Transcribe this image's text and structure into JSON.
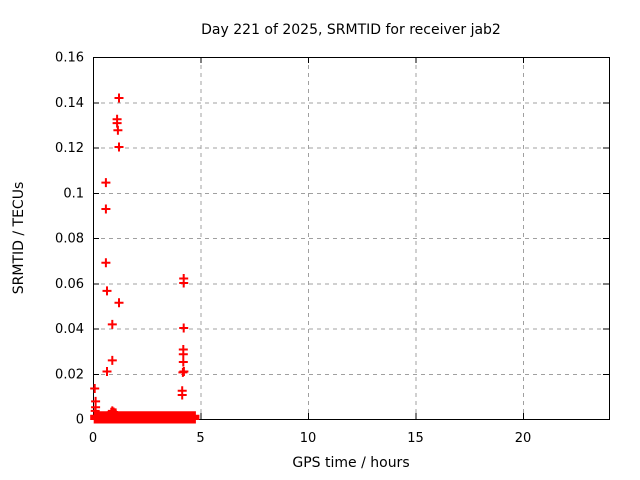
{
  "colors": {
    "marker": "#ff0000",
    "grid": "#a0a0a0",
    "axis": "#000000",
    "background": "#ffffff",
    "text": "#000000"
  },
  "chart_data": {
    "type": "scatter",
    "title": "Day 221 of 2025, SRMTID for receiver jab2",
    "xlabel": "GPS time / hours",
    "ylabel": "SRMTID / TECUs",
    "xlim": [
      0,
      24
    ],
    "ylim": [
      0,
      0.16
    ],
    "xticks": [
      0,
      5,
      10,
      15,
      20
    ],
    "yticks": [
      0,
      0.02,
      0.04,
      0.06,
      0.08,
      0.1,
      0.12,
      0.14,
      0.16
    ],
    "grid": true,
    "legend_position": "none",
    "marker": "plus",
    "series": [
      {
        "name": "SRMTID",
        "points": [
          [
            0.08,
            0.0135
          ],
          [
            0.12,
            0.0078
          ],
          [
            0.12,
            0.0052
          ],
          [
            0.1,
            0.0036
          ],
          [
            0.6,
            0.1045
          ],
          [
            0.6,
            0.0928
          ],
          [
            0.6,
            0.0691
          ],
          [
            0.65,
            0.0566
          ],
          [
            0.65,
            0.021
          ],
          [
            0.9,
            0.0418
          ],
          [
            0.9,
            0.0259
          ],
          [
            1.12,
            0.1325
          ],
          [
            1.12,
            0.1308
          ],
          [
            1.16,
            0.1276
          ],
          [
            1.21,
            0.1419
          ],
          [
            1.21,
            0.1202
          ],
          [
            1.21,
            0.0514
          ],
          [
            0.85,
            0.003
          ],
          [
            0.9,
            0.0036
          ],
          [
            0.96,
            0.0031
          ],
          [
            1.05,
            0.0027
          ],
          [
            4.22,
            0.0621
          ],
          [
            4.22,
            0.0601
          ],
          [
            4.22,
            0.0402
          ],
          [
            4.2,
            0.0307
          ],
          [
            4.2,
            0.0286
          ],
          [
            4.2,
            0.0252
          ],
          [
            4.18,
            0.0206
          ],
          [
            4.23,
            0.021
          ],
          [
            4.15,
            0.0125
          ],
          [
            4.15,
            0.0106
          ]
        ]
      }
    ],
    "dense_band": {
      "description": "continuous band of overlapping + markers at y near 0",
      "x_start": 0.08,
      "x_end": 4.74,
      "x_step": 0.02,
      "y_levels": [
        0,
        0.0007,
        0.0014
      ]
    }
  }
}
